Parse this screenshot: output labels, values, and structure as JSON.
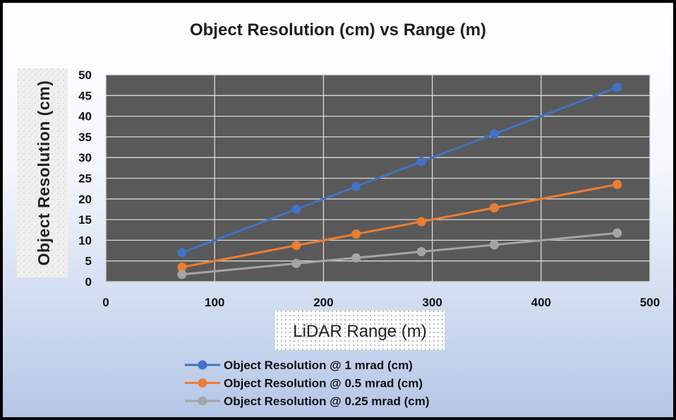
{
  "chart_data": {
    "type": "line",
    "title": "Object Resolution (cm) vs Range (m)",
    "xlabel": "LiDAR Range (m)",
    "ylabel": "Object Resolution (cm)",
    "xlim": [
      0,
      500
    ],
    "ylim": [
      0,
      50
    ],
    "x_ticks": [
      0,
      100,
      200,
      300,
      400,
      500
    ],
    "y_ticks": [
      0,
      5,
      10,
      15,
      20,
      25,
      30,
      35,
      40,
      45,
      50
    ],
    "grid": true,
    "legend_position": "bottom",
    "x": [
      70,
      175,
      230,
      290,
      357,
      470
    ],
    "series": [
      {
        "name": "Object Resolution @ 1 mrad (cm)",
        "color": "#4472c4",
        "values": [
          7,
          17.5,
          23,
          29,
          35.7,
          47
        ]
      },
      {
        "name": "Object Resolution @ 0.5  mrad (cm)",
        "color": "#ed7d31",
        "values": [
          3.5,
          8.75,
          11.5,
          14.5,
          17.85,
          23.5
        ]
      },
      {
        "name": "Object Resolution @ 0.25 mrad (cm)",
        "color": "#a5a5a5",
        "values": [
          1.75,
          4.4,
          5.75,
          7.25,
          8.9,
          11.75
        ]
      }
    ]
  }
}
